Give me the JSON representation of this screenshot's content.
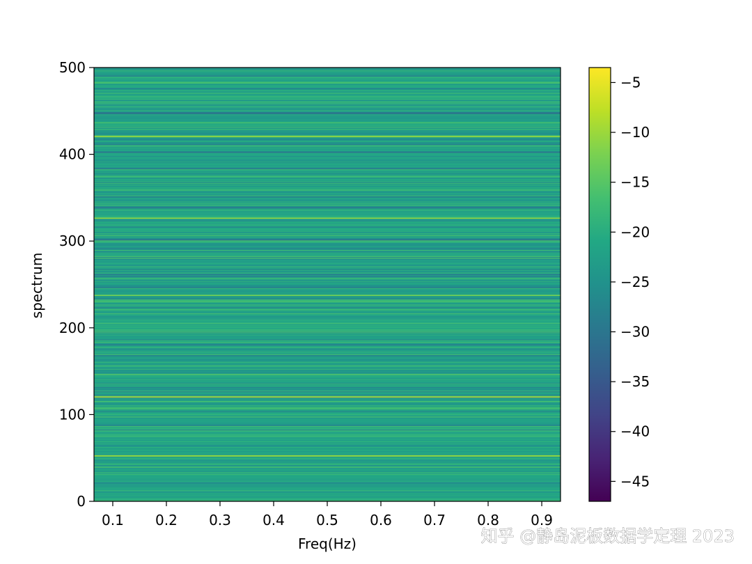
{
  "chart_data": {
    "type": "heatmap",
    "xlabel": "Freq(Hz)",
    "ylabel": "spectrum",
    "xlim": [
      0.065,
      0.935
    ],
    "ylim": [
      0,
      500
    ],
    "x_ticks": [
      0.1,
      0.2,
      0.3,
      0.4,
      0.5,
      0.6,
      0.7,
      0.8,
      0.9
    ],
    "x_tick_labels": [
      "0.1",
      "0.2",
      "0.3",
      "0.4",
      "0.5",
      "0.6",
      "0.7",
      "0.8",
      "0.9"
    ],
    "y_ticks": [
      0,
      100,
      200,
      300,
      400,
      500
    ],
    "y_tick_labels": [
      "0",
      "100",
      "200",
      "300",
      "400",
      "500"
    ],
    "colormap": "viridis",
    "colorbar": {
      "range": [
        -47,
        -3.5
      ],
      "ticks": [
        -5,
        -10,
        -15,
        -20,
        -25,
        -30,
        -35,
        -40,
        -45
      ],
      "tick_labels": [
        "−5",
        "−10",
        "−15",
        "−20",
        "−25",
        "−30",
        "−35",
        "−40",
        "−45"
      ]
    },
    "rows": 500,
    "grid": false,
    "band_values_note": "horizontal bands: value constant across frequency, varies by spectrum index",
    "highlight_bands": [
      {
        "y": 52,
        "value": -8
      },
      {
        "y": 120,
        "value": -7
      },
      {
        "y": 180,
        "value": -30
      },
      {
        "y": 237,
        "value": -12
      },
      {
        "y": 246,
        "value": -29
      },
      {
        "y": 301,
        "value": -31
      },
      {
        "y": 326,
        "value": -10
      },
      {
        "y": 338,
        "value": -29
      },
      {
        "y": 402,
        "value": -31
      },
      {
        "y": 420,
        "value": -10
      },
      {
        "y": 447,
        "value": -32
      }
    ]
  },
  "watermark": "知乎 @静岛泥板数据学定理 2023"
}
